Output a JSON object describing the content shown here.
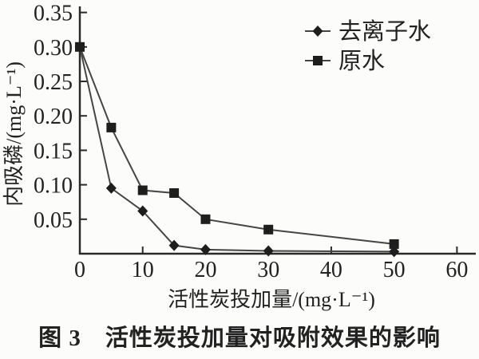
{
  "figure": {
    "caption": "图 3　活性炭投加量对吸附效果的影响"
  },
  "chart_data": {
    "type": "line",
    "title": "",
    "xlabel": "活性炭投加量/(mg·L⁻¹)",
    "ylabel": "内吸磷/(mg·L⁻¹)",
    "x": [
      0,
      5,
      10,
      15,
      20,
      30,
      50
    ],
    "series": [
      {
        "name": "去离子水",
        "marker": "diamond",
        "values": [
          0.3,
          0.095,
          0.062,
          0.012,
          0.006,
          0.004,
          0.003
        ]
      },
      {
        "name": "原水",
        "marker": "square",
        "values": [
          0.3,
          0.183,
          0.092,
          0.088,
          0.05,
          0.035,
          0.014
        ]
      }
    ],
    "xlim": [
      0,
      63
    ],
    "ylim": [
      0,
      0.36
    ],
    "xticks": [
      0,
      10,
      20,
      30,
      40,
      50,
      60
    ],
    "yticks": [
      0.05,
      0.1,
      0.15,
      0.2,
      0.25,
      0.3,
      0.35
    ],
    "grid": false,
    "legend_position": "top-right",
    "colors": {
      "line": "#454545",
      "marker": "#1e1e1e",
      "axis": "#2a2a2a",
      "text": "#222222",
      "background": "#fcfcfa"
    }
  }
}
